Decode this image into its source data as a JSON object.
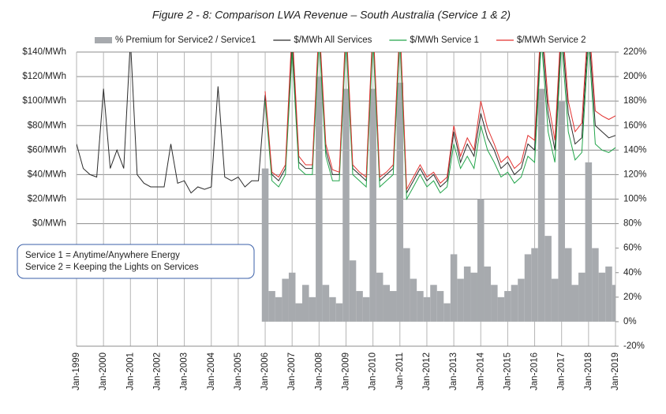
{
  "chart_data": {
    "type": "combo",
    "title": "Figure 2 - 8: Comparison LWA Revenue – South Australia (Service 1 & 2)",
    "x": [
      1999,
      1999.25,
      1999.5,
      1999.75,
      2000,
      2000.25,
      2000.5,
      2000.75,
      2001,
      2001.25,
      2001.5,
      2001.75,
      2002,
      2002.25,
      2002.5,
      2002.75,
      2003,
      2003.25,
      2003.5,
      2003.75,
      2004,
      2004.25,
      2004.5,
      2004.75,
      2005,
      2005.25,
      2005.5,
      2005.75,
      2006,
      2006.25,
      2006.5,
      2006.75,
      2007,
      2007.25,
      2007.5,
      2007.75,
      2008,
      2008.25,
      2008.5,
      2008.75,
      2009,
      2009.25,
      2009.5,
      2009.75,
      2010,
      2010.25,
      2010.5,
      2010.75,
      2011,
      2011.25,
      2011.5,
      2011.75,
      2012,
      2012.25,
      2012.5,
      2012.75,
      2013,
      2013.25,
      2013.5,
      2013.75,
      2014,
      2014.25,
      2014.5,
      2014.75,
      2015,
      2015.25,
      2015.5,
      2015.75,
      2016,
      2016.25,
      2016.5,
      2016.75,
      2017,
      2017.25,
      2017.5,
      2017.75,
      2018,
      2018.25,
      2018.5,
      2018.75,
      2019
    ],
    "series": [
      {
        "name": "% Premium for Service2 / Service1",
        "type": "bar",
        "axis": "y2",
        "color": "#a7aaae",
        "values": [
          null,
          null,
          null,
          null,
          null,
          null,
          null,
          null,
          null,
          null,
          null,
          null,
          null,
          null,
          null,
          null,
          null,
          null,
          null,
          null,
          null,
          null,
          null,
          null,
          null,
          null,
          null,
          null,
          125,
          25,
          20,
          35,
          40,
          15,
          30,
          20,
          200,
          30,
          20,
          15,
          190,
          50,
          25,
          20,
          190,
          40,
          30,
          25,
          195,
          60,
          35,
          25,
          20,
          30,
          25,
          15,
          55,
          35,
          45,
          40,
          100,
          45,
          30,
          20,
          25,
          30,
          35,
          55,
          60,
          190,
          70,
          35,
          180,
          60,
          30,
          40,
          130,
          60,
          40,
          45,
          30
        ]
      },
      {
        "name": "$/MWh All Services",
        "type": "line",
        "color": "#2b2b2b",
        "values": [
          65,
          45,
          40,
          38,
          110,
          45,
          60,
          45,
          150,
          40,
          33,
          30,
          30,
          30,
          65,
          33,
          35,
          25,
          30,
          28,
          30,
          112,
          38,
          35,
          38,
          30,
          35,
          35,
          105,
          40,
          35,
          45,
          150,
          50,
          45,
          45,
          160,
          60,
          40,
          40,
          160,
          45,
          40,
          35,
          160,
          35,
          40,
          45,
          160,
          25,
          35,
          45,
          35,
          40,
          30,
          35,
          75,
          50,
          65,
          55,
          90,
          70,
          60,
          45,
          50,
          40,
          45,
          65,
          60,
          160,
          90,
          60,
          160,
          90,
          65,
          70,
          160,
          80,
          75,
          70,
          72
        ]
      },
      {
        "name": "$/MWh Service 1",
        "type": "line",
        "color": "#23a54b",
        "values": [
          null,
          null,
          null,
          null,
          null,
          null,
          null,
          null,
          null,
          null,
          null,
          null,
          null,
          null,
          null,
          null,
          null,
          null,
          null,
          null,
          null,
          null,
          null,
          null,
          null,
          null,
          null,
          null,
          100,
          35,
          30,
          40,
          140,
          45,
          40,
          40,
          150,
          55,
          35,
          35,
          150,
          40,
          35,
          30,
          150,
          30,
          35,
          40,
          150,
          20,
          30,
          40,
          30,
          35,
          25,
          30,
          65,
          45,
          55,
          45,
          80,
          60,
          50,
          38,
          42,
          33,
          38,
          55,
          50,
          150,
          75,
          50,
          150,
          75,
          52,
          58,
          150,
          65,
          60,
          58,
          62
        ]
      },
      {
        "name": "$/MWh Service 2",
        "type": "line",
        "color": "#e2312f",
        "values": [
          null,
          null,
          null,
          null,
          null,
          null,
          null,
          null,
          null,
          null,
          null,
          null,
          null,
          null,
          null,
          null,
          null,
          null,
          null,
          null,
          null,
          null,
          null,
          null,
          null,
          null,
          null,
          null,
          108,
          42,
          38,
          48,
          160,
          55,
          48,
          48,
          165,
          65,
          44,
          42,
          165,
          48,
          42,
          38,
          165,
          38,
          42,
          48,
          165,
          28,
          38,
          48,
          38,
          42,
          33,
          38,
          80,
          55,
          70,
          60,
          100,
          78,
          65,
          50,
          55,
          45,
          50,
          72,
          68,
          170,
          100,
          68,
          170,
          100,
          75,
          82,
          170,
          92,
          88,
          85,
          88
        ]
      }
    ],
    "xlim": [
      1999,
      2019
    ],
    "xticks": [
      {
        "value": 1999,
        "label": "Jan-1999"
      },
      {
        "value": 2000,
        "label": "Jan-2000"
      },
      {
        "value": 2001,
        "label": "Jan-2001"
      },
      {
        "value": 2002,
        "label": "Jan-2002"
      },
      {
        "value": 2003,
        "label": "Jan-2003"
      },
      {
        "value": 2004,
        "label": "Jan-2004"
      },
      {
        "value": 2005,
        "label": "Jan-2005"
      },
      {
        "value": 2006,
        "label": "Jan-2006"
      },
      {
        "value": 2007,
        "label": "Jan-2007"
      },
      {
        "value": 2008,
        "label": "Jan-2008"
      },
      {
        "value": 2009,
        "label": "Jan-2009"
      },
      {
        "value": 2010,
        "label": "Jan-2010"
      },
      {
        "value": 2011,
        "label": "Jan-2011"
      },
      {
        "value": 2012,
        "label": "Jan-2012"
      },
      {
        "value": 2013,
        "label": "Jan-2013"
      },
      {
        "value": 2014,
        "label": "Jan-2014"
      },
      {
        "value": 2015,
        "label": "Jan-2015"
      },
      {
        "value": 2016,
        "label": "Jan-2016"
      },
      {
        "value": 2017,
        "label": "Jan-2017"
      },
      {
        "value": 2018,
        "label": "Jan-2018"
      },
      {
        "value": 2019,
        "label": "Jan-2019"
      }
    ],
    "ylim": [
      -100,
      140
    ],
    "yticks": [
      {
        "value": 0,
        "label": "$0/MWh"
      },
      {
        "value": 20,
        "label": "$20/MWh"
      },
      {
        "value": 40,
        "label": "$40/MWh"
      },
      {
        "value": 60,
        "label": "$60/MWh"
      },
      {
        "value": 80,
        "label": "$80/MWh"
      },
      {
        "value": 100,
        "label": "$100/MWh"
      },
      {
        "value": 120,
        "label": "$120/MWh"
      },
      {
        "value": 140,
        "label": "$140/MWh"
      }
    ],
    "y2lim": [
      -20,
      220
    ],
    "y2ticks": [
      {
        "value": -20,
        "label": "-20%"
      },
      {
        "value": 0,
        "label": "0%"
      },
      {
        "value": 20,
        "label": "20%"
      },
      {
        "value": 40,
        "label": "40%"
      },
      {
        "value": 60,
        "label": "60%"
      },
      {
        "value": 80,
        "label": "80%"
      },
      {
        "value": 100,
        "label": "100%"
      },
      {
        "value": 120,
        "label": "120%"
      },
      {
        "value": 140,
        "label": "140%"
      },
      {
        "value": 160,
        "label": "160%"
      },
      {
        "value": 180,
        "label": "180%"
      },
      {
        "value": 200,
        "label": "200%"
      },
      {
        "value": 220,
        "label": "220%"
      }
    ],
    "grid": true,
    "legend": "top",
    "annotations": [
      {
        "text": "Service 1 = Anytime/Anywhere Energy",
        "color": "#23a54b"
      },
      {
        "text": "Service 2 = Keeping the Lights on Services",
        "color": "#d42020"
      }
    ]
  }
}
